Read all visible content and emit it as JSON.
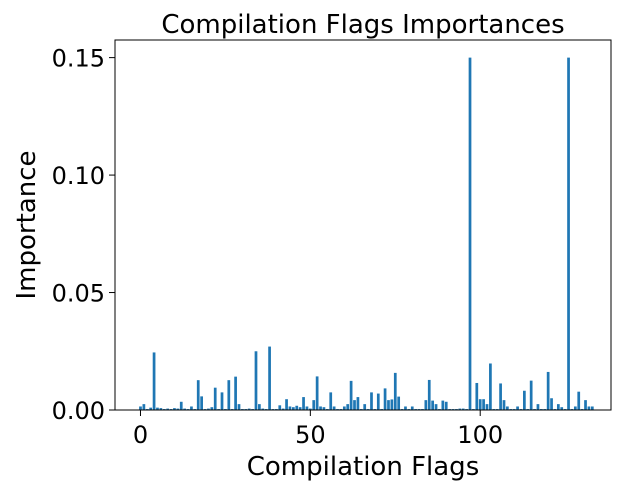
{
  "chart_data": {
    "type": "bar",
    "title": "Compilation Flags Importances",
    "xlabel": "Compilation Flags",
    "ylabel": "Importance",
    "xlim": [
      -7.5,
      138.5
    ],
    "ylim": [
      0,
      0.1575
    ],
    "xticks": [
      0,
      50,
      100
    ],
    "xtick_labels": [
      "0",
      "50",
      "100"
    ],
    "yticks": [
      0,
      0.05,
      0.1,
      0.15
    ],
    "ytick_labels": [
      "0.00",
      "0.05",
      "0.10",
      "0.15"
    ],
    "grid": false,
    "bar_color": "#1f77b4",
    "x": [
      0,
      1,
      2,
      3,
      4,
      5,
      6,
      7,
      8,
      9,
      10,
      11,
      12,
      13,
      14,
      15,
      16,
      17,
      18,
      19,
      20,
      21,
      22,
      23,
      24,
      25,
      26,
      27,
      28,
      29,
      30,
      31,
      32,
      33,
      34,
      35,
      36,
      37,
      38,
      39,
      40,
      41,
      42,
      43,
      44,
      45,
      46,
      47,
      48,
      49,
      50,
      51,
      52,
      53,
      54,
      55,
      56,
      57,
      58,
      59,
      60,
      61,
      62,
      63,
      64,
      65,
      66,
      67,
      68,
      69,
      70,
      71,
      72,
      73,
      74,
      75,
      76,
      77,
      78,
      79,
      80,
      81,
      82,
      83,
      84,
      85,
      86,
      87,
      88,
      89,
      90,
      91,
      92,
      93,
      94,
      95,
      96,
      97,
      98,
      99,
      100,
      101,
      102,
      103,
      104,
      105,
      106,
      107,
      108,
      109,
      110,
      111,
      112,
      113,
      114,
      115,
      116,
      117,
      118,
      119,
      120,
      121,
      122,
      123,
      124,
      125,
      126,
      127,
      128,
      129,
      130,
      131,
      132,
      133
    ],
    "values": [
      0.0015,
      0.0025,
      0.0004,
      0.001,
      0.0245,
      0.001,
      0.0008,
      0.0004,
      0.0006,
      0.0004,
      0.0008,
      0.0006,
      0.0035,
      0.0006,
      0.0004,
      0.0015,
      0.0004,
      0.0127,
      0.0058,
      0.0004,
      0.0006,
      0.0012,
      0.0095,
      0.0004,
      0.0075,
      0.0004,
      0.0127,
      0.0004,
      0.0142,
      0.0025,
      0.0004,
      0.0004,
      0.0006,
      0.0004,
      0.025,
      0.0025,
      0.0006,
      0.0004,
      0.027,
      0.0004,
      0.0004,
      0.002,
      0.0006,
      0.0046,
      0.0015,
      0.0012,
      0.0018,
      0.0012,
      0.0055,
      0.0015,
      0.0006,
      0.0042,
      0.0143,
      0.0015,
      0.0012,
      0.0004,
      0.0075,
      0.0015,
      0.0004,
      0.0004,
      0.0015,
      0.0025,
      0.0124,
      0.0042,
      0.0055,
      0.0004,
      0.0025,
      0.0004,
      0.0075,
      0.0004,
      0.007,
      0.0004,
      0.0092,
      0.0042,
      0.0045,
      0.0158,
      0.0057,
      0.0004,
      0.0015,
      0.0004,
      0.0015,
      0.0004,
      0.0004,
      0.0004,
      0.0042,
      0.0128,
      0.004,
      0.0025,
      0.0004,
      0.004,
      0.0035,
      0.0004,
      0.0004,
      0.0004,
      0.0006,
      0.0006,
      0.0004,
      0.15,
      0.0004,
      0.0115,
      0.0046,
      0.0046,
      0.0025,
      0.0198,
      0.0004,
      0.0004,
      0.0113,
      0.0042,
      0.0015,
      0.0004,
      0.0004,
      0.0015,
      0.0004,
      0.0082,
      0.0004,
      0.0125,
      0.0004,
      0.0025,
      0.0004,
      0.0004,
      0.0162,
      0.005,
      0.0004,
      0.0025,
      0.0012,
      0.0004,
      0.15,
      0.0004,
      0.0015,
      0.0078,
      0.0004,
      0.0042,
      0.0015,
      0.0015
    ]
  }
}
